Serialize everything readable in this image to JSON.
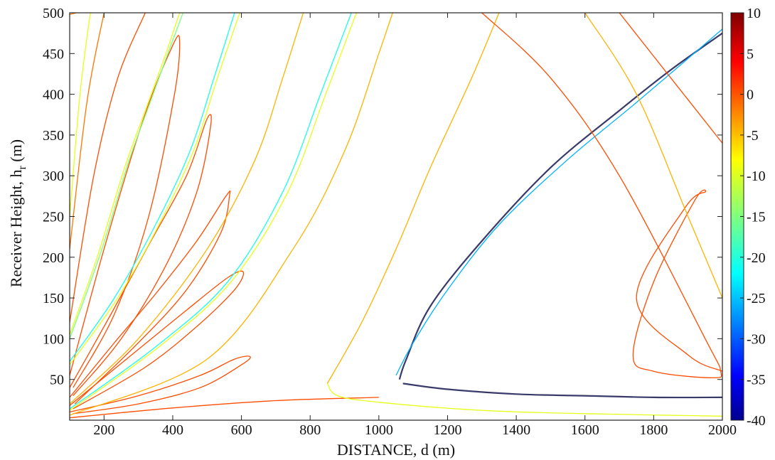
{
  "chart_data": {
    "type": "contour",
    "title": "",
    "xlabel": "DISTANCE, d (m)",
    "ylabel_main": "Receiver Height, h",
    "ylabel_sub": "r",
    "ylabel_unit": " (m)",
    "xlim": [
      100,
      2000
    ],
    "ylim": [
      0,
      500
    ],
    "xticks": [
      200,
      400,
      600,
      800,
      1000,
      1200,
      1400,
      1600,
      1800,
      2000
    ],
    "yticks": [
      50,
      100,
      150,
      200,
      250,
      300,
      350,
      400,
      450,
      500
    ],
    "colorbar": {
      "range": [
        -40,
        10
      ],
      "ticks": [
        10,
        5,
        0,
        -5,
        -10,
        -15,
        -20,
        -25,
        -30,
        -35,
        -40
      ],
      "colormap": "jet"
    },
    "contours": [
      {
        "name": "lobe-1",
        "level": -2,
        "points": [
          [
            100,
            498
          ],
          [
            120,
            500
          ]
        ]
      },
      {
        "name": "lobe-2",
        "level": -10,
        "points": [
          [
            100,
            250
          ],
          [
            130,
            400
          ],
          [
            160,
            500
          ]
        ]
      },
      {
        "name": "lobe-3",
        "level": -2,
        "points": [
          [
            100,
            210
          ],
          [
            150,
            390
          ],
          [
            200,
            500
          ]
        ]
      },
      {
        "name": "lobe-4",
        "level": 0,
        "points": [
          [
            100,
            120
          ],
          [
            170,
            300
          ],
          [
            240,
            420
          ],
          [
            320,
            500
          ]
        ]
      },
      {
        "name": "loop-inner",
        "level": 0,
        "points": [
          [
            100,
            55
          ],
          [
            200,
            210
          ],
          [
            315,
            370
          ],
          [
            400,
            460
          ],
          [
            420,
            465
          ],
          [
            405,
            400
          ],
          [
            330,
            250
          ],
          [
            230,
            130
          ],
          [
            110,
            40
          ]
        ]
      },
      {
        "name": "band-1",
        "level": -10,
        "points": [
          [
            100,
            105
          ],
          [
            180,
            200
          ],
          [
            260,
            310
          ],
          [
            320,
            380
          ],
          [
            380,
            450
          ],
          [
            420,
            500
          ]
        ]
      },
      {
        "name": "band-1b",
        "level": -15,
        "points": [
          [
            100,
            100
          ],
          [
            190,
            205
          ],
          [
            270,
            315
          ],
          [
            330,
            385
          ],
          [
            390,
            455
          ],
          [
            430,
            500
          ]
        ]
      },
      {
        "name": "loop-2",
        "level": 0,
        "points": [
          [
            100,
            40
          ],
          [
            220,
            130
          ],
          [
            330,
            215
          ],
          [
            440,
            300
          ],
          [
            500,
            370
          ],
          [
            510,
            360
          ],
          [
            470,
            280
          ],
          [
            380,
            190
          ],
          [
            250,
            100
          ],
          [
            110,
            30
          ]
        ]
      },
      {
        "name": "band-2",
        "level": -20,
        "points": [
          [
            100,
            72
          ],
          [
            230,
            150
          ],
          [
            350,
            240
          ],
          [
            450,
            330
          ],
          [
            520,
            420
          ],
          [
            580,
            500
          ]
        ]
      },
      {
        "name": "band-2b",
        "level": -10,
        "points": [
          [
            100,
            68
          ],
          [
            240,
            150
          ],
          [
            360,
            240
          ],
          [
            460,
            330
          ],
          [
            530,
            420
          ],
          [
            595,
            500
          ]
        ]
      },
      {
        "name": "loop-3",
        "level": 0,
        "points": [
          [
            100,
            28
          ],
          [
            230,
            95
          ],
          [
            350,
            155
          ],
          [
            470,
            220
          ],
          [
            555,
            275
          ],
          [
            565,
            275
          ],
          [
            540,
            230
          ],
          [
            440,
            160
          ],
          [
            300,
            95
          ],
          [
            115,
            20
          ]
        ]
      },
      {
        "name": "band-3",
        "level": -5,
        "points": [
          [
            100,
            20
          ],
          [
            300,
            100
          ],
          [
            500,
            210
          ],
          [
            640,
            320
          ],
          [
            720,
            420
          ],
          [
            780,
            500
          ]
        ]
      },
      {
        "name": "loop-4",
        "level": 0,
        "points": [
          [
            100,
            18
          ],
          [
            280,
            80
          ],
          [
            440,
            135
          ],
          [
            560,
            175
          ],
          [
            605,
            182
          ],
          [
            580,
            160
          ],
          [
            470,
            115
          ],
          [
            320,
            65
          ],
          [
            110,
            14
          ]
        ]
      },
      {
        "name": "band-4",
        "level": -20,
        "points": [
          [
            100,
            14
          ],
          [
            350,
            90
          ],
          [
            560,
            170
          ],
          [
            720,
            280
          ],
          [
            830,
            400
          ],
          [
            920,
            500
          ]
        ]
      },
      {
        "name": "band-4b",
        "level": -10,
        "points": [
          [
            100,
            12
          ],
          [
            360,
            90
          ],
          [
            570,
            170
          ],
          [
            735,
            280
          ],
          [
            845,
            400
          ],
          [
            935,
            500
          ]
        ]
      },
      {
        "name": "loop-5",
        "level": 0,
        "points": [
          [
            100,
            10
          ],
          [
            300,
            30
          ],
          [
            480,
            55
          ],
          [
            580,
            75
          ],
          [
            625,
            78
          ],
          [
            600,
            68
          ],
          [
            480,
            40
          ],
          [
            300,
            20
          ],
          [
            110,
            8
          ]
        ]
      },
      {
        "name": "band-5",
        "level": -5,
        "points": [
          [
            100,
            6
          ],
          [
            500,
            75
          ],
          [
            750,
            210
          ],
          [
            900,
            330
          ],
          [
            1000,
            450
          ],
          [
            1040,
            500
          ]
        ]
      },
      {
        "name": "band-6",
        "level": 0,
        "points": [
          [
            100,
            3
          ],
          [
            400,
            15
          ],
          [
            700,
            24
          ],
          [
            1000,
            28
          ]
        ]
      },
      {
        "name": "band-7",
        "level": -5,
        "points": [
          [
            850,
            45
          ],
          [
            950,
            120
          ],
          [
            1050,
            210
          ],
          [
            1150,
            310
          ],
          [
            1270,
            420
          ],
          [
            1350,
            500
          ]
        ]
      },
      {
        "name": "band-8",
        "level": -10,
        "points": [
          [
            850,
            45
          ],
          [
            880,
            30
          ],
          [
            1000,
            22
          ],
          [
            1300,
            12
          ],
          [
            1600,
            8
          ],
          [
            2000,
            5
          ]
        ]
      },
      {
        "name": "null-main",
        "level": -40,
        "points": [
          [
            1060,
            50
          ],
          [
            1080,
            75
          ],
          [
            1150,
            140
          ],
          [
            1300,
            220
          ],
          [
            1500,
            310
          ],
          [
            1700,
            380
          ],
          [
            1850,
            430
          ],
          [
            2000,
            475
          ]
        ]
      },
      {
        "name": "null-main-edge",
        "level": -25,
        "points": [
          [
            1050,
            55
          ],
          [
            1100,
            95
          ],
          [
            1200,
            160
          ],
          [
            1350,
            240
          ],
          [
            1550,
            320
          ],
          [
            1750,
            390
          ],
          [
            2000,
            480
          ]
        ]
      },
      {
        "name": "null-tail",
        "level": -40,
        "points": [
          [
            1070,
            45
          ],
          [
            1200,
            38
          ],
          [
            1400,
            32
          ],
          [
            1600,
            30
          ],
          [
            1800,
            28
          ],
          [
            2000,
            28
          ]
        ]
      },
      {
        "name": "loop-right",
        "level": 0,
        "points": [
          [
            1300,
            500
          ],
          [
            1500,
            420
          ],
          [
            1700,
            300
          ],
          [
            1950,
            100
          ],
          [
            1995,
            60
          ],
          [
            1970,
            52
          ],
          [
            1800,
            60
          ],
          [
            1740,
            80
          ],
          [
            1800,
            170
          ],
          [
            1920,
            270
          ],
          [
            1950,
            280
          ],
          [
            1890,
            260
          ],
          [
            1750,
            150
          ],
          [
            1900,
            80
          ],
          [
            2000,
            60
          ]
        ]
      },
      {
        "name": "band-right",
        "level": -5,
        "points": [
          [
            1600,
            500
          ],
          [
            1750,
            400
          ],
          [
            1900,
            250
          ],
          [
            2000,
            150
          ]
        ]
      },
      {
        "name": "band-far",
        "level": 0,
        "points": [
          [
            1700,
            500
          ],
          [
            1850,
            420
          ],
          [
            2000,
            340
          ]
        ]
      }
    ]
  }
}
